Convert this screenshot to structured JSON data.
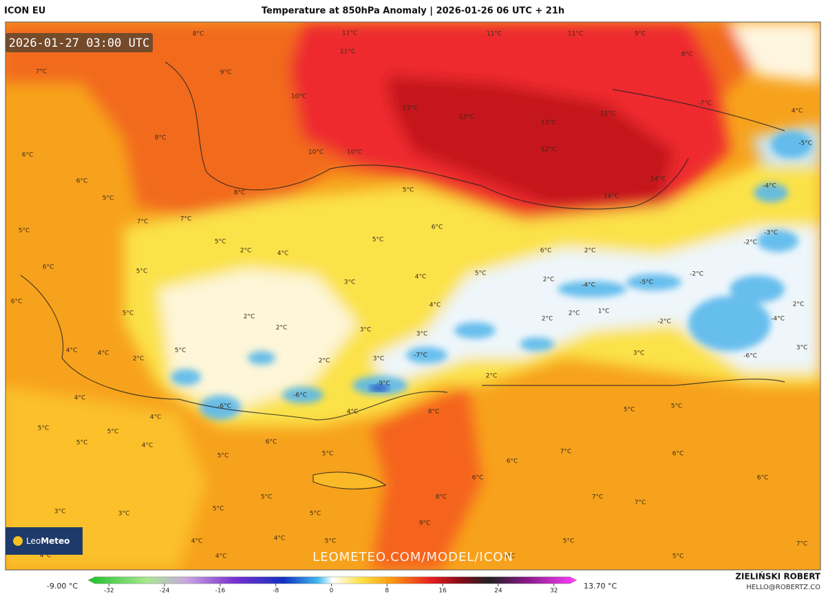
{
  "header": {
    "model": "ICON EU",
    "title": "Temperature at 850hPa Anomaly | 2026-01-26 06 UTC + 21h",
    "timestamp": "2026-01-27 03:00 UTC"
  },
  "map": {
    "labels": [
      "11°C",
      "11°C",
      "11°C",
      "11°C",
      "9°C",
      "8°C",
      "8°C",
      "7°C",
      "9°C",
      "10°C",
      "13°C",
      "13°C",
      "12°C",
      "13°C",
      "8°C",
      "12°C",
      "10°C",
      "10°C",
      "14°C",
      "14°C",
      "6°C",
      "6°C",
      "8°C",
      "5°C",
      "5°C",
      "7°C",
      "7°C",
      "5°C",
      "6°C",
      "5°C",
      "5°C",
      "2°C",
      "4°C",
      "6°C",
      "2°C",
      "6°C",
      "5°C",
      "3°C",
      "4°C",
      "5°C",
      "2°C",
      "6°C",
      "4°C",
      "2°C",
      "1°C",
      "5°C",
      "2°C",
      "2°C",
      "3°C",
      "3°C",
      "2°C",
      "-2°C",
      "-2°C",
      "-5°C",
      "-4°C",
      "4°C",
      "4°C",
      "2°C",
      "5°C",
      "2°C",
      "3°C",
      "-7°C",
      "3°C",
      "-6°C",
      "2°C",
      "3°C",
      "-9°C",
      "2°C",
      "-6°C",
      "-6°C",
      "4°C",
      "8°C",
      "4°C",
      "4°C",
      "5°C",
      "5°C",
      "5°C",
      "4°C",
      "6°C",
      "5°C",
      "5°C",
      "7°C",
      "6°C",
      "5°C",
      "5°C",
      "6°C",
      "6°C",
      "6°C",
      "5°C",
      "8°C",
      "7°C",
      "7°C",
      "3°C",
      "3°C",
      "5°C",
      "5°C",
      "9°C",
      "4°C",
      "4°C",
      "5°C",
      "5°C",
      "7°C",
      "4°C",
      "4°C",
      "6°C",
      "5°C",
      "-5°C",
      "-4°C",
      "-7°C",
      "4°C",
      "-3°C",
      "-2°C",
      "-4°C"
    ]
  },
  "watermark": "LEOMETEO.COM/MODEL/ICON",
  "logo": {
    "brand_light": "Leo",
    "brand_bold": "Meteo"
  },
  "colorbar": {
    "min_label": "-9.00 °C",
    "max_label": "13.70 °C",
    "ticks": [
      -32,
      -24,
      -16,
      -8,
      0,
      8,
      16,
      24,
      32
    ]
  },
  "credit": {
    "author": "ZIELIŃSKI ROBERT",
    "email": "HELLO@ROBERTZ.CO"
  }
}
